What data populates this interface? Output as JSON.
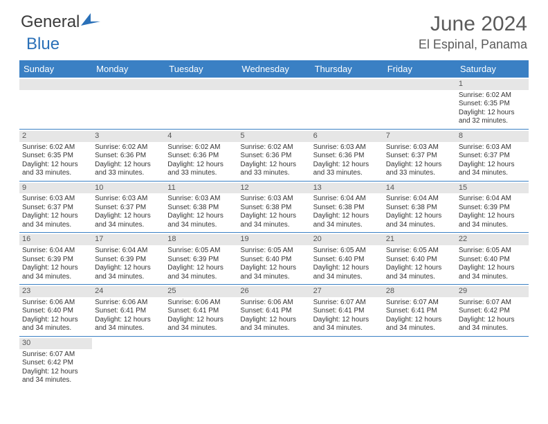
{
  "logo": {
    "text_general": "General",
    "text_blue": "Blue"
  },
  "title": "June 2024",
  "location": "El Espinal, Panama",
  "colors": {
    "header_bg": "#3a80c4",
    "header_text": "#ffffff",
    "daynum_bg": "#e6e6e6",
    "border": "#3a80c4",
    "title_color": "#5a5a5a"
  },
  "day_names": [
    "Sunday",
    "Monday",
    "Tuesday",
    "Wednesday",
    "Thursday",
    "Friday",
    "Saturday"
  ],
  "weeks": [
    [
      {
        "n": "",
        "sr": "",
        "ss": "",
        "dl": ""
      },
      {
        "n": "",
        "sr": "",
        "ss": "",
        "dl": ""
      },
      {
        "n": "",
        "sr": "",
        "ss": "",
        "dl": ""
      },
      {
        "n": "",
        "sr": "",
        "ss": "",
        "dl": ""
      },
      {
        "n": "",
        "sr": "",
        "ss": "",
        "dl": ""
      },
      {
        "n": "",
        "sr": "",
        "ss": "",
        "dl": ""
      },
      {
        "n": "1",
        "sr": "Sunrise: 6:02 AM",
        "ss": "Sunset: 6:35 PM",
        "dl": "Daylight: 12 hours and 32 minutes."
      }
    ],
    [
      {
        "n": "2",
        "sr": "Sunrise: 6:02 AM",
        "ss": "Sunset: 6:35 PM",
        "dl": "Daylight: 12 hours and 33 minutes."
      },
      {
        "n": "3",
        "sr": "Sunrise: 6:02 AM",
        "ss": "Sunset: 6:36 PM",
        "dl": "Daylight: 12 hours and 33 minutes."
      },
      {
        "n": "4",
        "sr": "Sunrise: 6:02 AM",
        "ss": "Sunset: 6:36 PM",
        "dl": "Daylight: 12 hours and 33 minutes."
      },
      {
        "n": "5",
        "sr": "Sunrise: 6:02 AM",
        "ss": "Sunset: 6:36 PM",
        "dl": "Daylight: 12 hours and 33 minutes."
      },
      {
        "n": "6",
        "sr": "Sunrise: 6:03 AM",
        "ss": "Sunset: 6:36 PM",
        "dl": "Daylight: 12 hours and 33 minutes."
      },
      {
        "n": "7",
        "sr": "Sunrise: 6:03 AM",
        "ss": "Sunset: 6:37 PM",
        "dl": "Daylight: 12 hours and 33 minutes."
      },
      {
        "n": "8",
        "sr": "Sunrise: 6:03 AM",
        "ss": "Sunset: 6:37 PM",
        "dl": "Daylight: 12 hours and 34 minutes."
      }
    ],
    [
      {
        "n": "9",
        "sr": "Sunrise: 6:03 AM",
        "ss": "Sunset: 6:37 PM",
        "dl": "Daylight: 12 hours and 34 minutes."
      },
      {
        "n": "10",
        "sr": "Sunrise: 6:03 AM",
        "ss": "Sunset: 6:37 PM",
        "dl": "Daylight: 12 hours and 34 minutes."
      },
      {
        "n": "11",
        "sr": "Sunrise: 6:03 AM",
        "ss": "Sunset: 6:38 PM",
        "dl": "Daylight: 12 hours and 34 minutes."
      },
      {
        "n": "12",
        "sr": "Sunrise: 6:03 AM",
        "ss": "Sunset: 6:38 PM",
        "dl": "Daylight: 12 hours and 34 minutes."
      },
      {
        "n": "13",
        "sr": "Sunrise: 6:04 AM",
        "ss": "Sunset: 6:38 PM",
        "dl": "Daylight: 12 hours and 34 minutes."
      },
      {
        "n": "14",
        "sr": "Sunrise: 6:04 AM",
        "ss": "Sunset: 6:38 PM",
        "dl": "Daylight: 12 hours and 34 minutes."
      },
      {
        "n": "15",
        "sr": "Sunrise: 6:04 AM",
        "ss": "Sunset: 6:39 PM",
        "dl": "Daylight: 12 hours and 34 minutes."
      }
    ],
    [
      {
        "n": "16",
        "sr": "Sunrise: 6:04 AM",
        "ss": "Sunset: 6:39 PM",
        "dl": "Daylight: 12 hours and 34 minutes."
      },
      {
        "n": "17",
        "sr": "Sunrise: 6:04 AM",
        "ss": "Sunset: 6:39 PM",
        "dl": "Daylight: 12 hours and 34 minutes."
      },
      {
        "n": "18",
        "sr": "Sunrise: 6:05 AM",
        "ss": "Sunset: 6:39 PM",
        "dl": "Daylight: 12 hours and 34 minutes."
      },
      {
        "n": "19",
        "sr": "Sunrise: 6:05 AM",
        "ss": "Sunset: 6:40 PM",
        "dl": "Daylight: 12 hours and 34 minutes."
      },
      {
        "n": "20",
        "sr": "Sunrise: 6:05 AM",
        "ss": "Sunset: 6:40 PM",
        "dl": "Daylight: 12 hours and 34 minutes."
      },
      {
        "n": "21",
        "sr": "Sunrise: 6:05 AM",
        "ss": "Sunset: 6:40 PM",
        "dl": "Daylight: 12 hours and 34 minutes."
      },
      {
        "n": "22",
        "sr": "Sunrise: 6:05 AM",
        "ss": "Sunset: 6:40 PM",
        "dl": "Daylight: 12 hours and 34 minutes."
      }
    ],
    [
      {
        "n": "23",
        "sr": "Sunrise: 6:06 AM",
        "ss": "Sunset: 6:40 PM",
        "dl": "Daylight: 12 hours and 34 minutes."
      },
      {
        "n": "24",
        "sr": "Sunrise: 6:06 AM",
        "ss": "Sunset: 6:41 PM",
        "dl": "Daylight: 12 hours and 34 minutes."
      },
      {
        "n": "25",
        "sr": "Sunrise: 6:06 AM",
        "ss": "Sunset: 6:41 PM",
        "dl": "Daylight: 12 hours and 34 minutes."
      },
      {
        "n": "26",
        "sr": "Sunrise: 6:06 AM",
        "ss": "Sunset: 6:41 PM",
        "dl": "Daylight: 12 hours and 34 minutes."
      },
      {
        "n": "27",
        "sr": "Sunrise: 6:07 AM",
        "ss": "Sunset: 6:41 PM",
        "dl": "Daylight: 12 hours and 34 minutes."
      },
      {
        "n": "28",
        "sr": "Sunrise: 6:07 AM",
        "ss": "Sunset: 6:41 PM",
        "dl": "Daylight: 12 hours and 34 minutes."
      },
      {
        "n": "29",
        "sr": "Sunrise: 6:07 AM",
        "ss": "Sunset: 6:42 PM",
        "dl": "Daylight: 12 hours and 34 minutes."
      }
    ],
    [
      {
        "n": "30",
        "sr": "Sunrise: 6:07 AM",
        "ss": "Sunset: 6:42 PM",
        "dl": "Daylight: 12 hours and 34 minutes."
      },
      {
        "n": "",
        "sr": "",
        "ss": "",
        "dl": ""
      },
      {
        "n": "",
        "sr": "",
        "ss": "",
        "dl": ""
      },
      {
        "n": "",
        "sr": "",
        "ss": "",
        "dl": ""
      },
      {
        "n": "",
        "sr": "",
        "ss": "",
        "dl": ""
      },
      {
        "n": "",
        "sr": "",
        "ss": "",
        "dl": ""
      },
      {
        "n": "",
        "sr": "",
        "ss": "",
        "dl": ""
      }
    ]
  ]
}
